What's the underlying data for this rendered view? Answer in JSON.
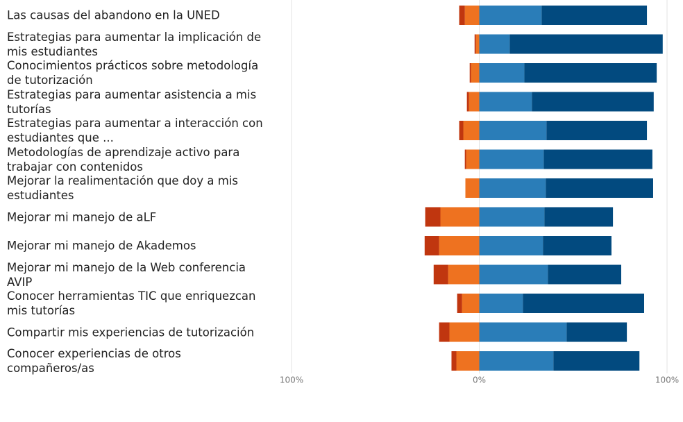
{
  "chart_data": {
    "type": "diverging-bar",
    "categories": [
      "Las causas del abandono en la UNED",
      "Estrategias para aumentar la implicación de mis estudiantes",
      "Conocimientos prácticos sobre metodología de tutorización",
      "Estrategias para aumentar asistencia a mis tutorías",
      "Estrategias para aumentar a interacción con estudiantes que ...",
      "Metodologías de aprendizaje activo para trabajar con contenidos",
      "Mejorar la realimentación que doy a mis estudiantes",
      "Mejorar mi manejo de aLF",
      "Mejorar mi manejo de Akademos",
      "Mejorar mi manejo de la Web conferencia AVIP",
      "Conocer herramientas TIC que enriquezcan mis tutorías",
      "Compartir mis experiencias de tutorización",
      "Conocer experiencias de otros compañeros/as"
    ],
    "series": [
      {
        "color": "#ee7220",
        "values": [
          -7.7,
          -1.8,
          -4.4,
          -5.5,
          -8.5,
          -7.0,
          -7.4,
          -20.7,
          -21.4,
          -16.6,
          -9.2,
          -15.9,
          -12.2
        ]
      },
      {
        "color": "#c0360f",
        "values": [
          -3.0,
          -0.7,
          -0.7,
          -1.1,
          -2.2,
          -0.7,
          0,
          -8.1,
          -7.7,
          -7.7,
          -2.6,
          -5.5,
          -2.6
        ]
      },
      {
        "color": "#2a7db8",
        "values": [
          33.2,
          16.2,
          24.0,
          28.0,
          35.8,
          34.3,
          35.4,
          34.7,
          33.9,
          36.5,
          23.2,
          46.5,
          39.5
        ]
      },
      {
        "color": "#024a7f",
        "values": [
          56.1,
          81.5,
          70.5,
          64.9,
          53.5,
          57.9,
          57.2,
          36.5,
          36.5,
          39.1,
          64.6,
          32.1,
          45.8
        ]
      }
    ],
    "xlim": [
      -100,
      100
    ],
    "xticks": [
      {
        "value": -100,
        "label": "100%"
      },
      {
        "value": 0,
        "label": "0%"
      },
      {
        "value": 100,
        "label": "100%"
      }
    ],
    "grid": true
  }
}
